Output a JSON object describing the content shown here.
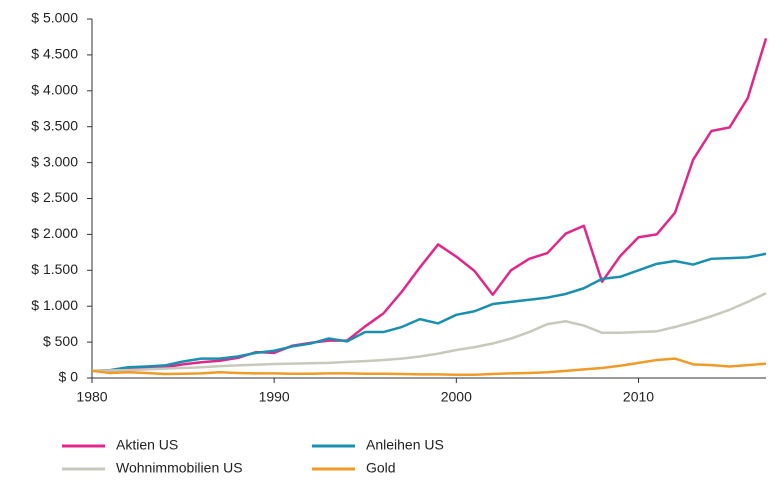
{
  "chart_data": {
    "type": "line",
    "x": [
      1980,
      1981,
      1982,
      1983,
      1984,
      1985,
      1986,
      1987,
      1988,
      1989,
      1990,
      1991,
      1992,
      1993,
      1994,
      1995,
      1996,
      1997,
      1998,
      1999,
      2000,
      2001,
      2002,
      2003,
      2004,
      2005,
      2006,
      2007,
      2008,
      2009,
      2010,
      2011,
      2012,
      2013,
      2014,
      2015,
      2016,
      2017
    ],
    "series": [
      {
        "name": "Aktien US",
        "color": "#e0288a",
        "values": [
          100,
          95,
          120,
          140,
          150,
          190,
          220,
          240,
          280,
          360,
          350,
          450,
          490,
          520,
          520,
          720,
          900,
          1200,
          1540,
          1860,
          1690,
          1490,
          1160,
          1500,
          1660,
          1740,
          2010,
          2120,
          1340,
          1700,
          1960,
          2000,
          2300,
          3040,
          3440,
          3490,
          3900,
          4730
        ]
      },
      {
        "name": "Anleihen US",
        "color": "#1a8fb0",
        "values": [
          100,
          110,
          150,
          160,
          175,
          230,
          270,
          270,
          300,
          350,
          380,
          440,
          480,
          550,
          510,
          640,
          640,
          710,
          820,
          760,
          880,
          930,
          1030,
          1060,
          1090,
          1120,
          1170,
          1250,
          1380,
          1410,
          1500,
          1590,
          1630,
          1580,
          1660,
          1670,
          1680,
          1730
        ]
      },
      {
        "name": "Wohnimmobilien US",
        "color": "#c8c8bc",
        "values": [
          100,
          105,
          110,
          120,
          130,
          140,
          150,
          165,
          175,
          185,
          195,
          200,
          205,
          210,
          225,
          235,
          250,
          270,
          300,
          340,
          390,
          430,
          480,
          550,
          640,
          750,
          790,
          730,
          630,
          630,
          640,
          650,
          710,
          780,
          860,
          950,
          1060,
          1180
        ]
      },
      {
        "name": "Gold",
        "color": "#f09a28",
        "values": [
          100,
          70,
          80,
          70,
          55,
          60,
          65,
          80,
          70,
          65,
          65,
          60,
          60,
          65,
          65,
          60,
          60,
          55,
          50,
          50,
          45,
          45,
          55,
          65,
          70,
          80,
          100,
          120,
          140,
          170,
          210,
          250,
          270,
          190,
          180,
          160,
          180,
          200
        ]
      }
    ],
    "xlim": [
      1980,
      2017
    ],
    "xticks": [
      1980,
      1990,
      2000,
      2010
    ],
    "ylim": [
      0,
      5000
    ],
    "yticks": [
      {
        "value": 0,
        "label": "$ 0"
      },
      {
        "value": 500,
        "label": "$ 500"
      },
      {
        "value": 1000,
        "label": "$ 1.000"
      },
      {
        "value": 1500,
        "label": "$ 1.500"
      },
      {
        "value": 2000,
        "label": "$ 2.000"
      },
      {
        "value": 2500,
        "label": "$ 2.500"
      },
      {
        "value": 3000,
        "label": "$ 3.000"
      },
      {
        "value": 3500,
        "label": "$ 3.500"
      },
      {
        "value": 4000,
        "label": "$ 4.000"
      },
      {
        "value": 4500,
        "label": "$ 4.500"
      },
      {
        "value": 5000,
        "label": "$ 5.000"
      }
    ],
    "grid": false,
    "legend": "bottom"
  }
}
